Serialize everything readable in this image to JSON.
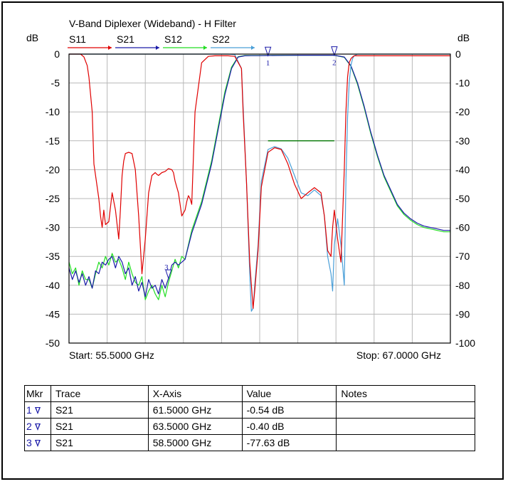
{
  "chart_data": {
    "type": "line",
    "title": "V-Band Diplexer (Wideband) - H Filter",
    "left_axis_unit": "dB",
    "right_axis_unit": "dB",
    "x_unit": "GHz",
    "xlim": [
      55.5,
      67.0
    ],
    "ylim_left": [
      -50,
      0
    ],
    "ylim_right": [
      -100,
      0
    ],
    "yticks_left": [
      "0",
      "-5",
      "-10",
      "-15",
      "-20",
      "-25",
      "-30",
      "-35",
      "-40",
      "-45",
      "-50"
    ],
    "yticks_right": [
      "0",
      "-10",
      "-20",
      "-30",
      "-40",
      "-50",
      "-60",
      "-70",
      "-80",
      "-90",
      "-100"
    ],
    "start_label": "Start: 55.5000 GHz",
    "stop_label": "Stop: 67.0000 GHz",
    "grid": true,
    "legend_position": "top",
    "legend": [
      {
        "name": "S11",
        "color": "#e00000",
        "axis": "left"
      },
      {
        "name": "S21",
        "color": "#1a1aa8",
        "axis": "right"
      },
      {
        "name": "S12",
        "color": "#22dd22",
        "axis": "right"
      },
      {
        "name": "S22",
        "color": "#4a9fd8",
        "axis": "left"
      }
    ],
    "series": [
      {
        "name": "S11",
        "color": "#e00000",
        "axis": "left",
        "x": [
          55.5,
          55.7,
          55.85,
          55.95,
          56.05,
          56.1,
          56.2,
          56.25,
          56.3,
          56.4,
          56.45,
          56.5,
          56.55,
          56.6,
          56.7,
          56.8,
          56.9,
          57.0,
          57.05,
          57.1,
          57.15,
          57.2,
          57.3,
          57.4,
          57.5,
          57.6,
          57.7,
          57.8,
          57.9,
          58.0,
          58.1,
          58.15,
          58.2,
          58.3,
          58.4,
          58.5,
          58.6,
          58.65,
          58.7,
          58.8,
          58.9,
          59.0,
          59.05,
          59.1,
          59.15,
          59.2,
          59.3,
          59.5,
          59.7,
          59.9,
          60.1,
          60.3,
          60.5,
          60.7,
          60.75,
          60.85,
          60.95,
          61.05,
          61.1,
          61.2,
          61.3,
          61.5,
          61.7,
          61.9,
          62.1,
          62.3,
          62.5,
          62.7,
          62.9,
          63.1,
          63.2,
          63.3,
          63.4,
          63.45,
          63.5,
          63.6,
          63.7,
          63.8,
          63.85,
          63.9,
          63.95,
          64.0,
          64.05,
          64.1,
          64.2,
          64.3,
          64.4,
          64.5,
          64.7,
          65.0,
          65.5,
          66.0,
          66.5,
          67.0
        ],
        "y": [
          0,
          0,
          0,
          -0.5,
          -2,
          -4,
          -10,
          -19,
          -21,
          -25,
          -28,
          -30,
          -27,
          -29.5,
          -29,
          -24,
          -27,
          -32,
          -27,
          -21,
          -18.5,
          -17.2,
          -17,
          -17.2,
          -20,
          -28,
          -38,
          -32,
          -24,
          -21,
          -20.5,
          -20.8,
          -21,
          -20.5,
          -20.3,
          -19.8,
          -20,
          -20.5,
          -22,
          -24,
          -28,
          -27,
          -25.5,
          -24.5,
          -25,
          -26,
          -10,
          -1.5,
          -0.4,
          -0.3,
          -0.3,
          -0.3,
          -0.4,
          -2.5,
          -10,
          -22,
          -36,
          -44,
          -41,
          -34,
          -23,
          -17,
          -16.2,
          -16.5,
          -19,
          -22.5,
          -25,
          -24,
          -23.1,
          -24,
          -28,
          -34,
          -35,
          -30,
          -27,
          -32,
          -36,
          -20,
          -10,
          -4,
          -1.5,
          -0.8,
          -0.5,
          -0.3,
          -0.3,
          -0.3,
          -0.3,
          -0.3,
          -0.3,
          -0.3,
          -0.3,
          -0.3,
          -0.3,
          -0.3
        ]
      },
      {
        "name": "S22",
        "color": "#4a9fd8",
        "axis": "left",
        "x": [
          55.5,
          58.0,
          60.0,
          60.3,
          60.5,
          60.7,
          60.75,
          60.85,
          60.95,
          61.0,
          61.05,
          61.1,
          61.2,
          61.3,
          61.5,
          61.7,
          61.9,
          62.1,
          62.3,
          62.5,
          62.7,
          62.9,
          63.1,
          63.2,
          63.3,
          63.4,
          63.45,
          63.5,
          63.6,
          63.7,
          63.8,
          63.85,
          63.9,
          63.95,
          64.0,
          64.05,
          64.1,
          64.2,
          64.3,
          64.5,
          65.0,
          66.0,
          67.0
        ],
        "y": [
          0,
          0,
          0,
          0,
          -0.1,
          -2.5,
          -9,
          -22,
          -38,
          -44.5,
          -44,
          -40,
          -33,
          -22,
          -16.5,
          -16,
          -16.4,
          -18,
          -21,
          -24,
          -24.5,
          -23.5,
          -24.5,
          -28,
          -35,
          -38,
          -41,
          -33,
          -28.5,
          -33,
          -40,
          -22,
          -11,
          -5,
          -2,
          -0.8,
          -0.3,
          0,
          0,
          0,
          0,
          0,
          0
        ]
      },
      {
        "name": "S21",
        "color": "#1a1aa8",
        "axis": "right",
        "x": [
          55.5,
          55.6,
          55.7,
          55.8,
          55.9,
          56.0,
          56.1,
          56.2,
          56.3,
          56.4,
          56.5,
          56.6,
          56.7,
          56.8,
          56.9,
          57.0,
          57.1,
          57.2,
          57.3,
          57.4,
          57.5,
          57.6,
          57.7,
          57.8,
          57.9,
          58.0,
          58.1,
          58.2,
          58.3,
          58.4,
          58.5,
          58.6,
          58.7,
          58.8,
          58.9,
          59.0,
          59.2,
          59.5,
          59.8,
          60.0,
          60.2,
          60.4,
          60.6,
          60.8,
          61.0,
          61.2,
          61.5,
          62.0,
          62.5,
          63.0,
          63.5,
          63.8,
          64.0,
          64.2,
          64.4,
          64.6,
          64.8,
          65.0,
          65.2,
          65.4,
          65.6,
          65.8,
          66.0,
          66.2,
          66.4,
          66.6,
          66.8,
          67.0
        ],
        "y": [
          -74,
          -78,
          -75,
          -79,
          -76,
          -80,
          -77,
          -81,
          -75,
          -76,
          -72,
          -73,
          -71,
          -70,
          -74,
          -70,
          -72,
          -76,
          -74,
          -80,
          -77,
          -82,
          -79,
          -84,
          -78,
          -81,
          -80,
          -83,
          -78,
          -81,
          -77.6,
          -73,
          -72,
          -73,
          -72,
          -71,
          -62,
          -52,
          -38,
          -26,
          -14,
          -5,
          -1,
          -0.6,
          -0.55,
          -0.54,
          -0.5,
          -0.45,
          -0.4,
          -0.4,
          -0.4,
          -1,
          -4,
          -10,
          -18,
          -27,
          -35,
          -42,
          -47,
          -52,
          -55,
          -57,
          -58.5,
          -59.5,
          -60,
          -60.5,
          -61,
          -61
        ]
      },
      {
        "name": "S12",
        "color": "#22dd22",
        "axis": "right",
        "x": [
          55.5,
          55.6,
          55.7,
          55.8,
          55.9,
          56.0,
          56.1,
          56.2,
          56.3,
          56.4,
          56.5,
          56.6,
          56.7,
          56.8,
          56.9,
          57.0,
          57.1,
          57.2,
          57.3,
          57.4,
          57.5,
          57.6,
          57.7,
          57.8,
          57.9,
          58.0,
          58.1,
          58.2,
          58.3,
          58.4,
          58.5,
          58.6,
          58.7,
          58.8,
          58.9,
          59.0,
          59.2,
          59.5,
          59.8,
          60.0,
          60.2,
          60.4,
          60.6,
          60.8,
          61.0,
          61.2,
          61.5,
          62.0,
          62.5,
          63.0,
          63.5,
          63.8,
          64.0,
          64.2,
          64.4,
          64.6,
          64.8,
          65.0,
          65.2,
          65.4,
          65.6,
          65.8,
          66.0,
          66.2,
          66.4,
          66.6,
          66.8,
          67.0
        ],
        "y": [
          -72,
          -76,
          -74,
          -80,
          -75,
          -78,
          -78,
          -81,
          -76,
          -72,
          -74,
          -70,
          -73,
          -69,
          -72,
          -71,
          -74,
          -78,
          -72,
          -76,
          -79,
          -80,
          -77,
          -85,
          -82,
          -80,
          -83,
          -85,
          -80,
          -84,
          -79,
          -75,
          -71,
          -74,
          -70,
          -71,
          -61,
          -51,
          -37,
          -25,
          -13,
          -4.5,
          -0.9,
          -0.5,
          -0.5,
          -0.5,
          -0.45,
          -0.4,
          -0.4,
          -0.4,
          -0.4,
          -1.1,
          -4.2,
          -10.5,
          -18.5,
          -27.5,
          -35.5,
          -42.5,
          -47.5,
          -52.5,
          -55.5,
          -57.5,
          -59,
          -60,
          -60.5,
          -61,
          -61.5,
          -61.5
        ]
      }
    ],
    "limit_line": {
      "x": [
        61.5,
        63.5
      ],
      "y_left": -15,
      "color": "#007700"
    },
    "markers": [
      {
        "id": "1",
        "trace": "S21",
        "x": 61.5,
        "y_right": -0.54
      },
      {
        "id": "2",
        "trace": "S21",
        "x": 63.5,
        "y_right": -0.4
      },
      {
        "id": "3",
        "trace": "S21",
        "x": 58.5,
        "y_right": -77.63
      }
    ]
  },
  "marker_table": {
    "headers": [
      "Mkr",
      "Trace",
      "X-Axis",
      "Value",
      "Notes"
    ],
    "rows": [
      {
        "mkr": "1",
        "trace": "S21",
        "x": "61.5000 GHz",
        "value": "-0.54 dB",
        "notes": ""
      },
      {
        "mkr": "2",
        "trace": "S21",
        "x": "63.5000 GHz",
        "value": "-0.40 dB",
        "notes": ""
      },
      {
        "mkr": "3",
        "trace": "S21",
        "x": "58.5000 GHz",
        "value": "-77.63 dB",
        "notes": ""
      }
    ]
  }
}
